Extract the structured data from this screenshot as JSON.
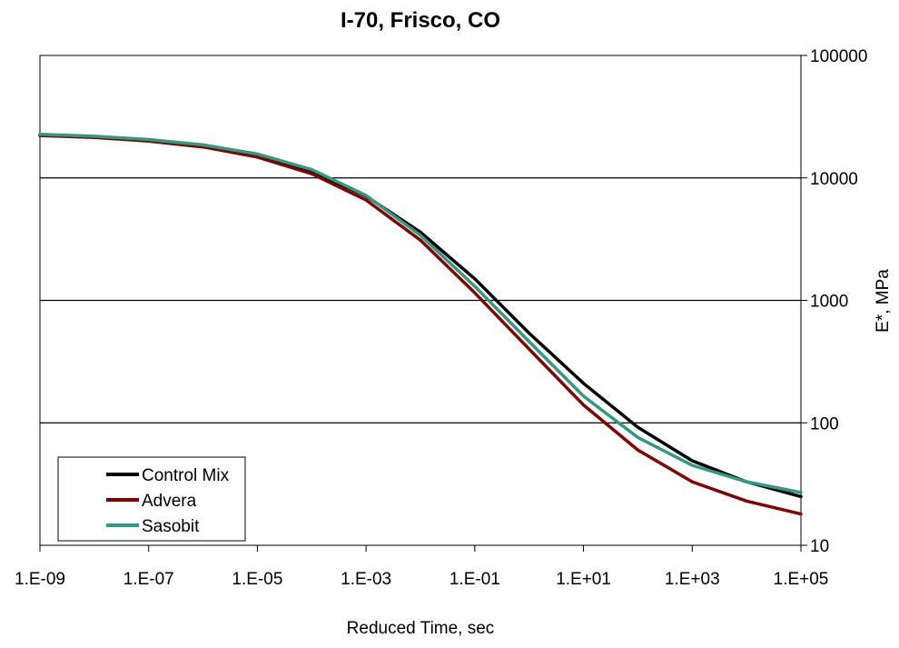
{
  "chart_data": {
    "type": "line",
    "title": "I-70, Frisco, CO",
    "xlabel": "Reduced Time, sec",
    "ylabel": "E*, MPa",
    "x_scale": "log",
    "y_scale": "log",
    "xlim": [
      1e-09,
      100000.0
    ],
    "ylim": [
      10,
      100000
    ],
    "y_axis_position": "right",
    "grid": "horizontal major lines",
    "legend_position": "bottom-left",
    "x_ticks": [
      1e-09,
      1e-07,
      1e-05,
      0.001,
      0.1,
      10.0,
      1000.0,
      100000.0
    ],
    "x_tick_labels": [
      "1.E-09",
      "1.E-07",
      "1.E-05",
      "1.E-03",
      "1.E-01",
      "1.E+01",
      "1.E+03",
      "1.E+05"
    ],
    "y_ticks": [
      10,
      100,
      1000,
      10000,
      100000
    ],
    "y_tick_labels": [
      "10",
      "100",
      "1000",
      "10000",
      "100000"
    ],
    "x": [
      1e-09,
      1e-08,
      1e-07,
      1e-06,
      1e-05,
      0.0001,
      0.001,
      0.01,
      0.1,
      1.0,
      10.0,
      100.0,
      1000.0,
      10000.0,
      100000.0
    ],
    "series": [
      {
        "name": "Control Mix",
        "color": "#000000",
        "values": [
          22500,
          21700,
          20400,
          18400,
          15500,
          11400,
          7100,
          3600,
          1500,
          540,
          210,
          92,
          49,
          33,
          25
        ]
      },
      {
        "name": "Advera",
        "color": "#800000",
        "values": [
          22200,
          21400,
          20000,
          17900,
          14800,
          10800,
          6600,
          3100,
          1150,
          400,
          140,
          60,
          33,
          23,
          18
        ]
      },
      {
        "name": "Sasobit",
        "color": "#339980",
        "values": [
          22700,
          21900,
          20600,
          18600,
          15700,
          11700,
          7200,
          3400,
          1300,
          460,
          165,
          76,
          45,
          33,
          27
        ]
      }
    ]
  }
}
